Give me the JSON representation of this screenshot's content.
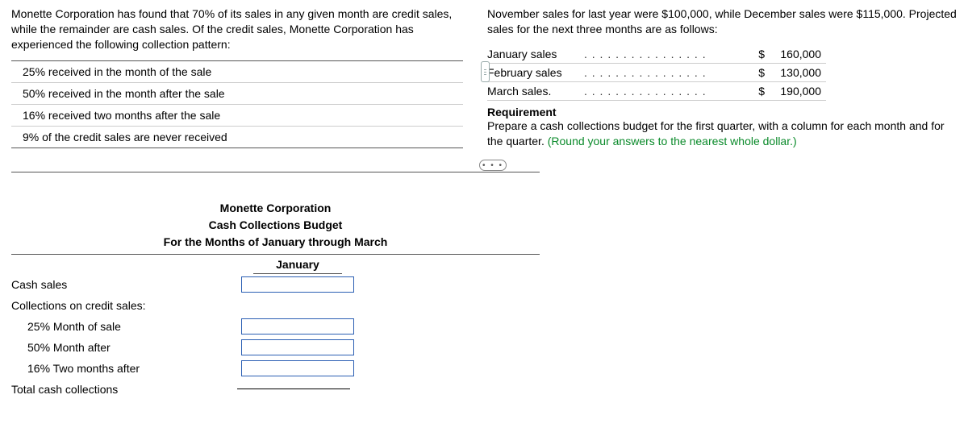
{
  "problem": {
    "intro": "Monette Corporation has found that 70% of its sales in any given month are credit sales, while the remainder are cash sales. Of the credit sales, Monette Corporation has experienced the following collection pattern:",
    "pattern": [
      "25% received in the month of the sale",
      "50% received in the month after the sale",
      "16% received two months after the sale",
      "9% of the credit sales are never received"
    ],
    "sales_intro": "November sales for last year were $100,000, while December sales were $115,000. Projected sales for the next three months are as follows:",
    "sales_rows": [
      {
        "label": "January sales",
        "currency": "$",
        "value": "160,000"
      },
      {
        "label": "February sales",
        "currency": "$",
        "value": "130,000"
      },
      {
        "label": "March sales.",
        "currency": "$",
        "value": "190,000"
      }
    ],
    "dots": ". . . . . . . . . . . . . . . .",
    "requirement_head": "Requirement",
    "requirement_text": "Prepare a cash collections budget for the first quarter, with a column for each month and for the quarter. ",
    "requirement_hint": "(Round your answers to the nearest whole dollar.)"
  },
  "budget": {
    "title1": "Monette Corporation",
    "title2": "Cash Collections Budget",
    "title3": "For the Months of January through March",
    "col1": "January",
    "rows": {
      "cash_sales": "Cash sales",
      "collections_head": "Collections on credit sales:",
      "r25": "25% Month of sale",
      "r50": "50% Month after",
      "r16": "16% Two months after",
      "total": "Total cash collections"
    }
  },
  "ellipsis": "• • •"
}
